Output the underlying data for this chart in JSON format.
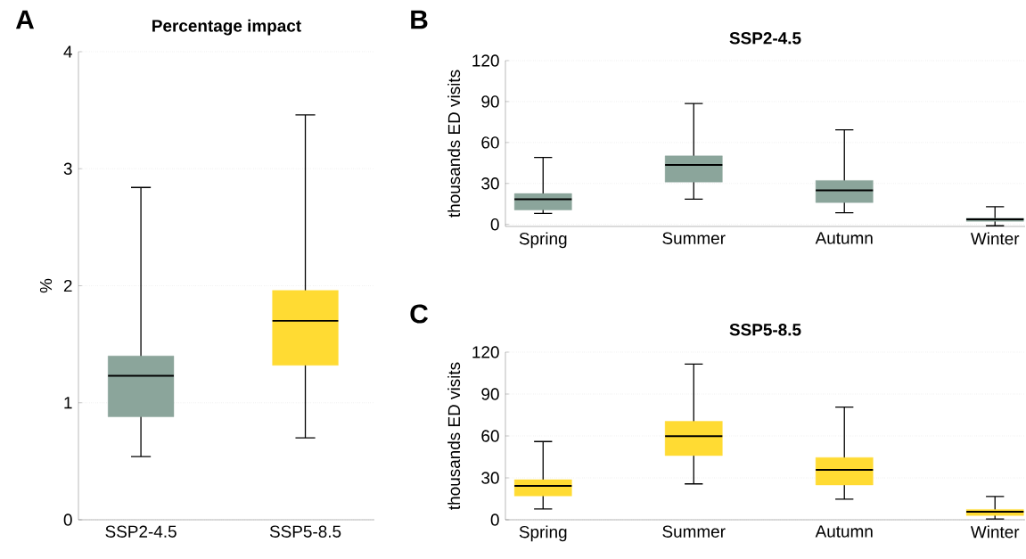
{
  "chart_data": [
    {
      "type": "box",
      "title": "Percentage impact",
      "ylabel": "%",
      "categories": [
        "SSP2-4.5",
        "SSP5-8.5"
      ],
      "boxes": [
        {
          "low": 0.54,
          "q1": 0.88,
          "median": 1.23,
          "q3": 1.4,
          "high": 2.84
        },
        {
          "low": 0.7,
          "q1": 1.32,
          "median": 1.7,
          "q3": 1.96,
          "high": 3.46
        }
      ],
      "colors": [
        "#8ba59b",
        "#ffdb33"
      ],
      "ylim": [
        0,
        4
      ],
      "yticks": [
        0,
        1,
        2,
        3,
        4
      ],
      "grid": "y",
      "annotations": [
        "A"
      ]
    },
    {
      "type": "box",
      "title": "SSP2-4.5",
      "ylabel": "thousands ED visits",
      "categories": [
        "Spring",
        "Summer",
        "Autumn",
        "Winter"
      ],
      "boxes": [
        {
          "low": 8,
          "q1": 10.6,
          "median": 18.5,
          "q3": 22.6,
          "high": 49
        },
        {
          "low": 18.5,
          "q1": 31,
          "median": 43.6,
          "q3": 50.2,
          "high": 88.6
        },
        {
          "low": 8.5,
          "q1": 16,
          "median": 25,
          "q3": 32.2,
          "high": 69.3
        },
        {
          "low": -1,
          "q1": 2.2,
          "median": 3.8,
          "q3": 4.6,
          "high": 13
        }
      ],
      "colors": [
        "#8ba59b",
        "#8ba59b",
        "#8ba59b",
        "#8ba59b"
      ],
      "ylim": [
        -1.5,
        120
      ],
      "yticks": [
        0,
        30,
        60,
        90,
        120
      ],
      "grid": "y",
      "annotations": [
        "B"
      ]
    },
    {
      "type": "box",
      "title": "SSP5-8.5",
      "ylabel": "thousands ED visits",
      "categories": [
        "Spring",
        "Summer",
        "Autumn",
        "Winter"
      ],
      "boxes": [
        {
          "low": 7.7,
          "q1": 17,
          "median": 24.3,
          "q3": 28.7,
          "high": 56
        },
        {
          "low": 25.7,
          "q1": 45.9,
          "median": 59.9,
          "q3": 70.5,
          "high": 111.5
        },
        {
          "low": 14.8,
          "q1": 24.9,
          "median": 35.8,
          "q3": 44.6,
          "high": 80.6
        },
        {
          "low": 0.5,
          "q1": 3,
          "median": 5.7,
          "q3": 7.4,
          "high": 16.7
        }
      ],
      "colors": [
        "#ffdb33",
        "#ffdb33",
        "#ffdb33",
        "#ffdb33"
      ],
      "ylim": [
        0,
        120
      ],
      "yticks": [
        0,
        30,
        60,
        90,
        120
      ],
      "grid": "y",
      "annotations": [
        "C"
      ]
    }
  ]
}
